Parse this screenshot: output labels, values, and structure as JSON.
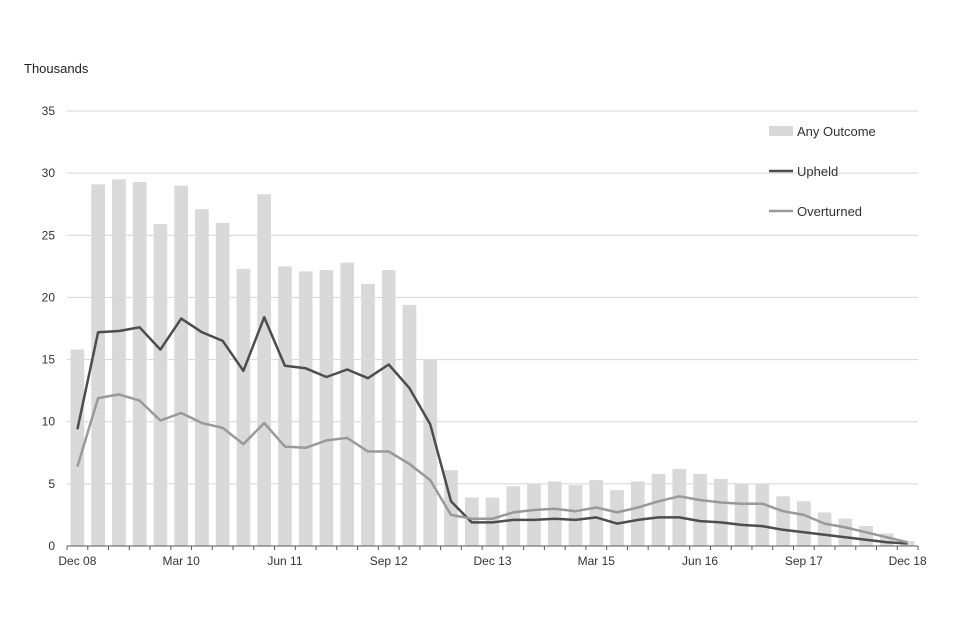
{
  "chart_data": {
    "type": "bar",
    "ylabel": "Thousands",
    "ylim": [
      0,
      35
    ],
    "yticks": [
      0,
      5,
      10,
      15,
      20,
      25,
      30,
      35
    ],
    "grid": true,
    "legend_position": "top-right",
    "x_tick_labels": [
      {
        "index": 0,
        "label": "Dec 08"
      },
      {
        "index": 5,
        "label": "Mar 10"
      },
      {
        "index": 10,
        "label": "Jun 11"
      },
      {
        "index": 15,
        "label": "Sep 12"
      },
      {
        "index": 20,
        "label": "Dec 13"
      },
      {
        "index": 25,
        "label": "Mar 15"
      },
      {
        "index": 30,
        "label": "Jun 16"
      },
      {
        "index": 35,
        "label": "Sep 17"
      },
      {
        "index": 40,
        "label": "Dec 18"
      }
    ],
    "categories": [
      "Dec 08",
      "Mar 09",
      "Jun 09",
      "Sep 09",
      "Dec 09",
      "Mar 10",
      "Jun 10",
      "Sep 10",
      "Dec 10",
      "Mar 11",
      "Jun 11",
      "Sep 11",
      "Dec 11",
      "Mar 12",
      "Jun 12",
      "Sep 12",
      "Dec 12",
      "Mar 13",
      "Jun 13",
      "Sep 13",
      "Dec 13",
      "Mar 14",
      "Jun 14",
      "Sep 14",
      "Dec 14",
      "Mar 15",
      "Jun 15",
      "Sep 15",
      "Dec 15",
      "Mar 16",
      "Jun 16",
      "Sep 16",
      "Dec 16",
      "Mar 17",
      "Jun 17",
      "Sep 17",
      "Dec 17",
      "Mar 18",
      "Jun 18",
      "Sep 18",
      "Dec 18"
    ],
    "series": [
      {
        "name": "Any Outcome",
        "kind": "bar",
        "color": "#d9d9d9",
        "values": [
          15.8,
          29.1,
          29.5,
          29.3,
          25.9,
          29.0,
          27.1,
          26.0,
          22.3,
          28.3,
          22.5,
          22.1,
          22.2,
          22.8,
          21.1,
          22.2,
          19.4,
          15.0,
          6.1,
          3.9,
          3.9,
          4.8,
          5.0,
          5.2,
          4.9,
          5.3,
          4.5,
          5.2,
          5.8,
          6.2,
          5.8,
          5.4,
          5.0,
          5.0,
          4.0,
          3.6,
          2.7,
          2.2,
          1.6,
          1.0,
          0.4
        ]
      },
      {
        "name": "Upheld",
        "kind": "line",
        "color": "#4d4d4d",
        "values": [
          9.4,
          17.2,
          17.3,
          17.6,
          15.8,
          18.3,
          17.2,
          16.5,
          14.1,
          18.4,
          14.5,
          14.3,
          13.6,
          14.2,
          13.5,
          14.6,
          12.7,
          9.8,
          3.6,
          1.9,
          1.9,
          2.1,
          2.1,
          2.2,
          2.1,
          2.3,
          1.8,
          2.1,
          2.3,
          2.3,
          2.0,
          1.9,
          1.7,
          1.6,
          1.3,
          1.1,
          0.9,
          0.7,
          0.5,
          0.3,
          0.2
        ]
      },
      {
        "name": "Overturned",
        "kind": "line",
        "color": "#999999",
        "values": [
          6.4,
          11.9,
          12.2,
          11.7,
          10.1,
          10.7,
          9.9,
          9.5,
          8.2,
          9.9,
          8.0,
          7.9,
          8.5,
          8.7,
          7.6,
          7.6,
          6.6,
          5.3,
          2.5,
          2.2,
          2.2,
          2.7,
          2.9,
          3.0,
          2.8,
          3.1,
          2.7,
          3.1,
          3.6,
          4.0,
          3.7,
          3.5,
          3.4,
          3.4,
          2.8,
          2.5,
          1.8,
          1.5,
          1.1,
          0.7,
          0.3
        ]
      }
    ]
  }
}
